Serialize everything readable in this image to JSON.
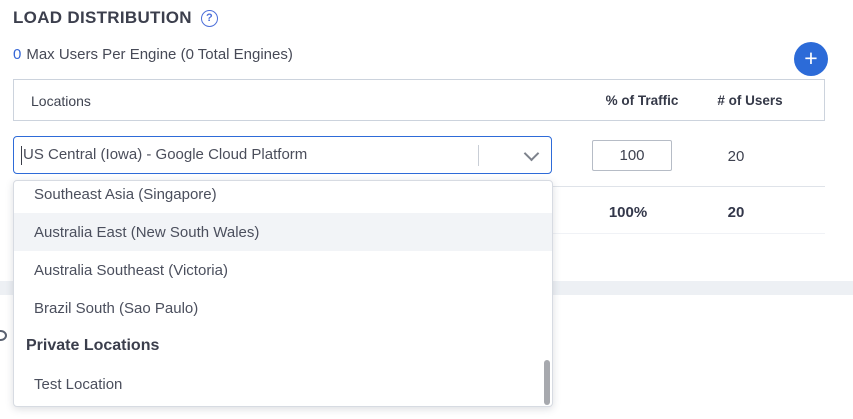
{
  "colors": {
    "accent_blue": "#2c6bd8",
    "link_blue": "#3566d6",
    "border_gray": "#ccd3dd",
    "band_gray": "#edf0f4",
    "highlight_row": "#f2f4f7"
  },
  "header": {
    "title": "LOAD DISTRIBUTION",
    "help_icon": "question-mark-circle",
    "help_glyph": "?",
    "max_users_value": "0",
    "max_users_label": "Max Users Per Engine (0 Total Engines)",
    "add_icon": "plus",
    "add_glyph": "+"
  },
  "table": {
    "columns": {
      "locations": "Locations",
      "traffic": "% of Traffic",
      "users": "# of Users"
    },
    "row": {
      "location": "US Central (Iowa) - Google Cloud Platform",
      "traffic_pct": "100",
      "users": "20"
    },
    "totals": {
      "traffic_pct": "100%",
      "users": "20"
    }
  },
  "location_dropdown": {
    "chevron_icon": "chevron-down",
    "items": [
      {
        "label": "Southeast Asia (Singapore)"
      },
      {
        "label": "Australia East (New South Wales)",
        "highlighted": true
      },
      {
        "label": "Australia Southeast (Victoria)"
      },
      {
        "label": "Brazil South (Sao Paulo)"
      },
      {
        "label": "Private Locations",
        "group_header": true
      },
      {
        "label": "Test Location"
      }
    ]
  }
}
